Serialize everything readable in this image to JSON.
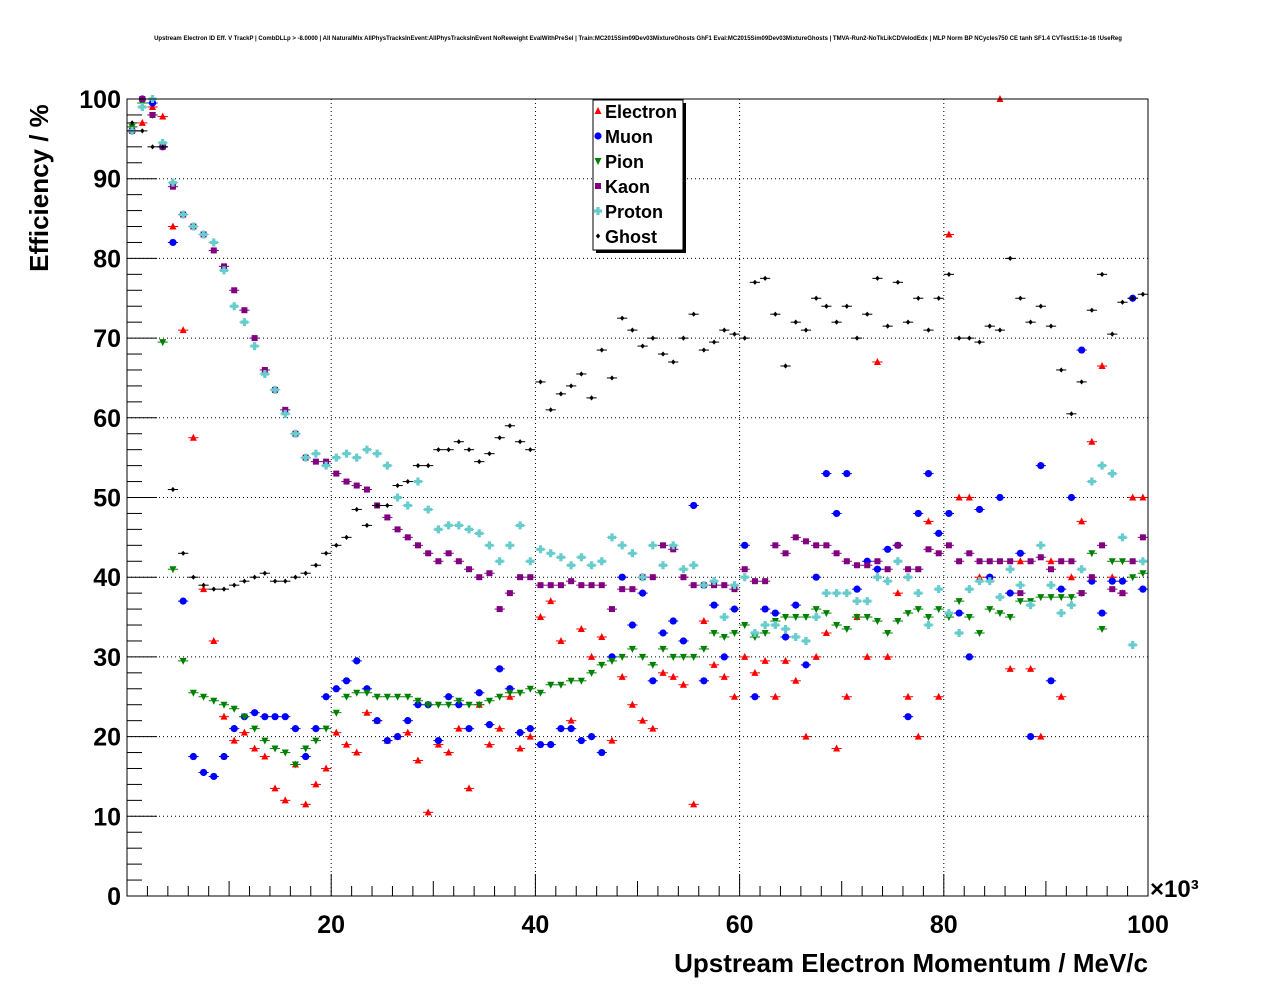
{
  "chart_data": {
    "type": "scatter",
    "title": "Upstream Electron ID Eff. V TrackP | CombDLLp > -8.0000 | All NaturalMix AllPhysTracksInEvent:AllPhysTracksInEvent NoReweight EvalWithPreSel | Train:MC2015Sim09Dev03MixtureGhosts GhF1 Eval:MC2015Sim09Dev03MixtureGhosts | TMVA-Run2-NoTkLikCDVelodEdx | MLP Norm BP NCycles750 CE tanh SF1.4 CVTest15:1e-16 !UseReg",
    "xlabel": "Upstream Electron Momentum / MeV/c",
    "ylabel": "Efficiency / %",
    "x_multiplier": "×10³",
    "xlim": [
      0,
      100
    ],
    "ylim": [
      0,
      100
    ],
    "x_ticks": [
      "20",
      "40",
      "60",
      "80",
      "100"
    ],
    "y_ticks": [
      "0",
      "10",
      "20",
      "30",
      "40",
      "50",
      "60",
      "70",
      "80",
      "90",
      "100"
    ],
    "grid": true,
    "legend_position": "top-center",
    "x": [
      0.5,
      1.5,
      2.5,
      3.5,
      4.5,
      5.5,
      6.5,
      7.5,
      8.5,
      9.5,
      10.5,
      11.5,
      12.5,
      13.5,
      14.5,
      15.5,
      16.5,
      17.5,
      18.5,
      19.5,
      20.5,
      21.5,
      22.5,
      23.5,
      24.5,
      25.5,
      26.5,
      27.5,
      28.5,
      29.5,
      30.5,
      31.5,
      32.5,
      33.5,
      34.5,
      35.5,
      36.5,
      37.5,
      38.5,
      39.5,
      40.5,
      41.5,
      42.5,
      43.5,
      44.5,
      45.5,
      46.5,
      47.5,
      48.5,
      49.5,
      50.5,
      51.5,
      52.5,
      53.5,
      54.5,
      55.5,
      56.5,
      57.5,
      58.5,
      59.5,
      60.5,
      61.5,
      62.5,
      63.5,
      64.5,
      65.5,
      66.5,
      67.5,
      68.5,
      69.5,
      70.5,
      71.5,
      72.5,
      73.5,
      74.5,
      75.5,
      76.5,
      77.5,
      78.5,
      79.5,
      80.5,
      81.5,
      82.5,
      83.5,
      84.5,
      85.5,
      86.5,
      87.5,
      88.5,
      89.5,
      90.5,
      91.5,
      92.5,
      93.5,
      94.5,
      95.5,
      96.5,
      97.5,
      98.5,
      99.5
    ],
    "series": [
      {
        "name": "Electron",
        "color": "#ff0000",
        "marker": "triangle-up",
        "values": [
          96.5,
          97,
          99,
          97.8,
          84,
          71,
          57.5,
          38.5,
          32,
          22.5,
          19.5,
          20.5,
          18.5,
          17.5,
          13.5,
          12,
          16.5,
          11.5,
          14,
          16,
          20.5,
          19,
          18,
          23,
          22,
          19.5,
          20,
          20.5,
          17,
          10.5,
          19,
          18,
          21,
          13.5,
          24,
          19,
          21,
          25,
          18.5,
          20,
          35,
          37,
          32,
          22,
          33.5,
          30,
          32.5,
          19.5,
          27.5,
          24,
          22,
          21,
          28,
          27.5,
          26.5,
          11.5,
          34.5,
          29,
          27.5,
          25,
          30,
          28,
          29.5,
          25,
          29.5,
          27,
          20,
          30,
          33,
          18.5,
          25,
          35,
          30,
          67,
          30,
          38,
          25,
          20,
          47,
          25,
          83,
          50,
          50,
          40,
          40,
          100,
          28.5,
          42,
          28.5,
          20,
          42,
          25,
          40,
          47,
          57,
          66.5,
          40,
          38,
          50,
          50
        ]
      },
      {
        "name": "Muon",
        "color": "#0000ff",
        "marker": "circle",
        "values": [
          96,
          100,
          99.5,
          94,
          82,
          37,
          17.5,
          15.5,
          15,
          17.5,
          21,
          22.5,
          23,
          22.5,
          22.5,
          22.5,
          21,
          17.5,
          21,
          25,
          26,
          27,
          29.5,
          26,
          22,
          19.5,
          20,
          22,
          24,
          24,
          19.5,
          25,
          24,
          21,
          25.5,
          21.5,
          28.5,
          26,
          20.5,
          21,
          19,
          19,
          21,
          21,
          19.5,
          20,
          18,
          30,
          40,
          34,
          38,
          27,
          33,
          34.5,
          32,
          49,
          27,
          36.5,
          30,
          36,
          44,
          25,
          36,
          35.5,
          32.5,
          36.5,
          29,
          40,
          53,
          48,
          53,
          38.5,
          42,
          41,
          43.5,
          44,
          22.5,
          48,
          53,
          45.5,
          48,
          35.5,
          30,
          48.5,
          40,
          50,
          38,
          43,
          20,
          54,
          27,
          38.5,
          50,
          68.5,
          39.5,
          35.5,
          39.5,
          39.5,
          75,
          38.5
        ]
      },
      {
        "name": "Pion",
        "color": "#008000",
        "marker": "triangle-down",
        "values": [
          96.5,
          99.5,
          98,
          69.5,
          41,
          29.5,
          25.5,
          25,
          24.5,
          24,
          23.5,
          22.5,
          21,
          19.5,
          18.5,
          18,
          16.5,
          18.5,
          19.5,
          21,
          23,
          25,
          25.5,
          25.5,
          25,
          25,
          25,
          25,
          24.5,
          24,
          24,
          24,
          24.5,
          24,
          24,
          24.5,
          25,
          25.5,
          25.5,
          26,
          25.5,
          26.5,
          26.5,
          27,
          27,
          28,
          29,
          29.5,
          30,
          31,
          30,
          29,
          31,
          30,
          30,
          30,
          31,
          33,
          32.5,
          33,
          34,
          32.5,
          33,
          34.5,
          35,
          35,
          35,
          36,
          35.5,
          34,
          33.5,
          35,
          35,
          34.5,
          33,
          34.5,
          35.5,
          36,
          35,
          36,
          35,
          37,
          35,
          33,
          36,
          35.5,
          35,
          37,
          37,
          37.5,
          37.5,
          37.5,
          37.5,
          38,
          43,
          33.5,
          42,
          42,
          40,
          40.5
        ]
      },
      {
        "name": "Kaon",
        "color": "#800080",
        "marker": "square",
        "values": [
          96,
          100,
          98,
          94,
          89,
          85.5,
          84,
          83,
          81,
          79,
          76,
          73.5,
          70,
          66,
          63.5,
          61,
          58,
          55,
          54.5,
          54.5,
          53,
          52,
          51.5,
          51,
          49,
          47.5,
          46,
          45,
          44,
          43,
          42,
          43,
          42,
          41,
          40,
          40.5,
          36,
          38,
          40,
          40,
          39,
          39,
          39,
          39.5,
          39,
          39,
          39,
          36,
          38.5,
          38.5,
          40,
          40,
          44,
          43.5,
          40,
          39,
          39,
          39,
          39,
          38.5,
          41,
          39.5,
          39.5,
          44,
          43,
          45,
          44.5,
          44,
          44,
          43,
          42,
          41.5,
          41.5,
          42,
          41,
          44,
          41,
          41,
          43.5,
          43,
          44,
          42,
          43,
          42,
          42,
          42,
          42,
          38,
          42,
          42.5,
          41,
          42,
          42,
          38,
          40,
          44,
          38.5,
          38,
          42,
          45
        ]
      },
      {
        "name": "Proton",
        "color": "#66cccc",
        "marker": "cross",
        "values": [
          96,
          99,
          100,
          94.5,
          89.5,
          85.5,
          84,
          83,
          82,
          78.5,
          74,
          72,
          69,
          65.5,
          63.5,
          60.5,
          58,
          55,
          55.5,
          54,
          55,
          55.5,
          55,
          56,
          55.5,
          54,
          50,
          49,
          52,
          48.5,
          46,
          46.5,
          46.5,
          46,
          45.5,
          44,
          42,
          44,
          46.5,
          42,
          43.5,
          43,
          42.5,
          41.5,
          42.5,
          41.5,
          42,
          45,
          44,
          43,
          40,
          44,
          41.5,
          44,
          41,
          41.5,
          39,
          39.5,
          35,
          39,
          40,
          33,
          34,
          34,
          33.5,
          32.5,
          32,
          35,
          38,
          38,
          38,
          37,
          37,
          40,
          39.5,
          42,
          40,
          38,
          34,
          38.5,
          35.5,
          33,
          38.5,
          39.5,
          39.5,
          37.5,
          41,
          39,
          36.5,
          44,
          39,
          35.5,
          36.5,
          41,
          52,
          54,
          53,
          45,
          31.5,
          42
        ]
      },
      {
        "name": "Ghost",
        "color": "#000000",
        "marker": "diamond",
        "values": [
          97,
          96,
          94,
          94,
          51,
          43,
          40,
          39,
          38.5,
          38.5,
          39,
          39.5,
          40,
          40.5,
          39.5,
          39.5,
          40,
          40.5,
          41.5,
          43,
          44,
          45,
          48.5,
          46.5,
          49,
          49,
          51.5,
          52,
          54,
          54,
          56,
          56,
          57,
          56,
          54.5,
          55.5,
          57.5,
          59,
          57,
          56,
          64.5,
          61,
          63,
          64,
          65.5,
          62.5,
          68.5,
          65,
          72.5,
          71,
          69,
          70,
          68,
          67,
          70,
          73,
          68.5,
          69.5,
          71,
          70.5,
          70,
          77,
          77.5,
          73,
          66.5,
          72,
          71,
          75,
          74,
          72,
          74,
          70,
          73,
          77.5,
          71.5,
          77,
          72,
          75,
          71,
          75,
          78,
          70,
          70,
          69.5,
          71.5,
          71,
          80,
          75,
          72,
          74,
          71.5,
          66,
          60.5,
          64.5,
          73.5,
          78,
          70.5,
          74.5,
          75,
          75.5
        ]
      }
    ]
  }
}
